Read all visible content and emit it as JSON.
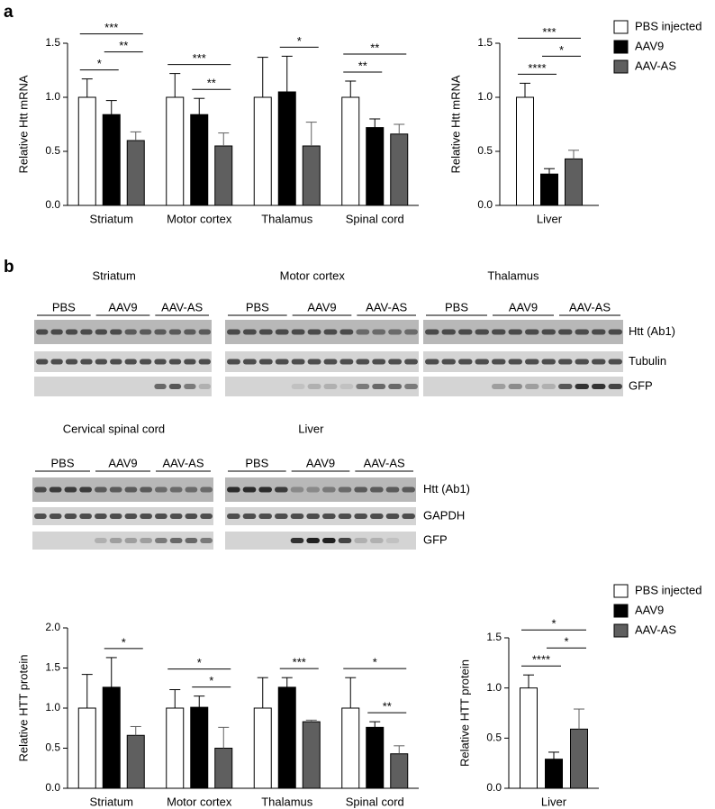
{
  "panel_labels": [
    "a",
    "b"
  ],
  "chart_data": [
    {
      "type": "bar",
      "ylabel": "Relative Htt mRNA",
      "categories": [
        "Striatum",
        "Motor cortex",
        "Thalamus",
        "Spinal cord"
      ],
      "series": [
        {
          "color": "#ffffff",
          "values": [
            1.0,
            1.0,
            1.0,
            1.0
          ],
          "errors": [
            0.17,
            0.22,
            0.37,
            0.15
          ]
        },
        {
          "color": "#000000",
          "values": [
            0.84,
            0.84,
            1.05,
            0.72
          ],
          "errors": [
            0.13,
            0.15,
            0.33,
            0.08
          ]
        },
        {
          "color": "#5f5f5f",
          "values": [
            0.6,
            0.55,
            0.55,
            0.66
          ],
          "errors": [
            0.08,
            0.12,
            0.22,
            0.09
          ]
        }
      ],
      "ylim": [
        0,
        1.5
      ],
      "yticks": [
        {
          "value": 0,
          "label": "0.0"
        },
        0.5,
        {
          "value": 1,
          "label": "1.0"
        },
        1.5
      ],
      "annotations": [
        {
          "category": 0,
          "from": 0,
          "to": 1,
          "label": "*"
        },
        {
          "category": 0,
          "from": 0,
          "to": 2,
          "label": "***"
        },
        {
          "category": 0,
          "from": 1,
          "to": 2,
          "label": "**"
        },
        {
          "category": 1,
          "from": 0,
          "to": 2,
          "label": "***"
        },
        {
          "category": 1,
          "from": 1,
          "to": 2,
          "label": "**"
        },
        {
          "category": 2,
          "from": 1,
          "to": 2,
          "label": "*"
        },
        {
          "category": 3,
          "from": 0,
          "to": 2,
          "label": "**"
        },
        {
          "category": 3,
          "from": 0,
          "to": 1,
          "label": "**"
        }
      ]
    },
    {
      "type": "bar",
      "ylabel": "Relative Htt mRNA",
      "legend": "right",
      "categories": [
        "Liver"
      ],
      "series": [
        {
          "name": "PBS injected",
          "color": "#ffffff",
          "values": [
            1.0
          ],
          "errors": [
            0.13
          ]
        },
        {
          "name": "AAV9",
          "color": "#000000",
          "values": [
            0.29
          ],
          "errors": [
            0.05
          ]
        },
        {
          "name": "AAV-AS",
          "color": "#5f5f5f",
          "values": [
            0.43
          ],
          "errors": [
            0.08
          ]
        }
      ],
      "ylim": [
        0,
        1.5
      ],
      "yticks": [
        {
          "value": 0,
          "label": "0.0"
        },
        0.5,
        {
          "value": 1,
          "label": "1.0"
        },
        1.5
      ],
      "annotations": [
        {
          "category": 0,
          "from": 0,
          "to": 1,
          "label": "****"
        },
        {
          "category": 0,
          "from": 0,
          "to": 2,
          "label": "***"
        },
        {
          "category": 0,
          "from": 1,
          "to": 2,
          "label": "*"
        }
      ]
    },
    {
      "type": "bar",
      "ylabel": "Relative HTT protein",
      "categories": [
        "Striatum",
        "Motor cortex",
        "Thalamus",
        "Spinal cord"
      ],
      "series": [
        {
          "color": "#ffffff",
          "values": [
            1.0,
            1.0,
            1.0,
            1.0
          ],
          "errors": [
            0.42,
            0.23,
            0.38,
            0.38
          ]
        },
        {
          "color": "#000000",
          "values": [
            1.26,
            1.01,
            1.26,
            0.76
          ],
          "errors": [
            0.37,
            0.14,
            0.12,
            0.07
          ]
        },
        {
          "color": "#5f5f5f",
          "values": [
            0.66,
            0.5,
            0.83,
            0.43
          ],
          "errors": [
            0.11,
            0.26,
            0.02,
            0.1
          ]
        }
      ],
      "ylim": [
        0,
        2
      ],
      "yticks": [
        {
          "value": 0,
          "label": "0.0"
        },
        0.5,
        {
          "value": 1,
          "label": "1.0"
        },
        1.5,
        {
          "value": 2,
          "label": "2.0"
        }
      ],
      "annotations": [
        {
          "category": 0,
          "from": 1,
          "to": 2,
          "label": "*"
        },
        {
          "category": 1,
          "from": 0,
          "to": 2,
          "label": "*"
        },
        {
          "category": 1,
          "from": 1,
          "to": 2,
          "label": "*"
        },
        {
          "category": 2,
          "from": 1,
          "to": 2,
          "label": "***"
        },
        {
          "category": 3,
          "from": 0,
          "to": 2,
          "label": "*"
        },
        {
          "category": 3,
          "from": 1,
          "to": 2,
          "label": "**"
        }
      ]
    },
    {
      "type": "bar",
      "ylabel": "Relative HTT protein",
      "legend": "right",
      "categories": [
        "Liver"
      ],
      "series": [
        {
          "name": "PBS injected",
          "color": "#ffffff",
          "values": [
            1.0
          ],
          "errors": [
            0.13
          ]
        },
        {
          "name": "AAV9",
          "color": "#000000",
          "values": [
            0.29
          ],
          "errors": [
            0.07
          ]
        },
        {
          "name": "AAV-AS",
          "color": "#5f5f5f",
          "values": [
            0.59
          ],
          "errors": [
            0.2
          ]
        }
      ],
      "ylim": [
        0,
        1.5
      ],
      "yticks": [
        {
          "value": 0,
          "label": "0.0"
        },
        0.5,
        {
          "value": 1,
          "label": "1.0"
        },
        1.5
      ],
      "annotations": [
        {
          "category": 0,
          "from": 0,
          "to": 1,
          "label": "****"
        },
        {
          "category": 0,
          "from": 0,
          "to": 2,
          "label": "*"
        },
        {
          "category": 0,
          "from": 1,
          "to": 2,
          "label": "*"
        }
      ]
    }
  ],
  "blots": [
    {
      "title": "Striatum",
      "groups": [
        "PBS",
        "AAV9",
        "AAV-AS"
      ]
    },
    {
      "title": "Motor cortex",
      "groups": [
        "PBS",
        "AAV9",
        "AAV-AS"
      ]
    },
    {
      "title": "Thalamus",
      "groups": [
        "PBS",
        "AAV9",
        "AAV-AS"
      ],
      "row_labels": [
        "Htt (Ab1)",
        "Tubulin",
        "GFP"
      ]
    },
    {
      "title": "Cervical spinal cord",
      "groups": [
        "PBS",
        "AAV9",
        "AAV-AS"
      ]
    },
    {
      "title": "Liver",
      "groups": [
        "PBS",
        "AAV9",
        "AAV-AS"
      ],
      "row_labels": [
        "Htt (Ab1)",
        "GAPDH",
        "GFP"
      ]
    }
  ]
}
